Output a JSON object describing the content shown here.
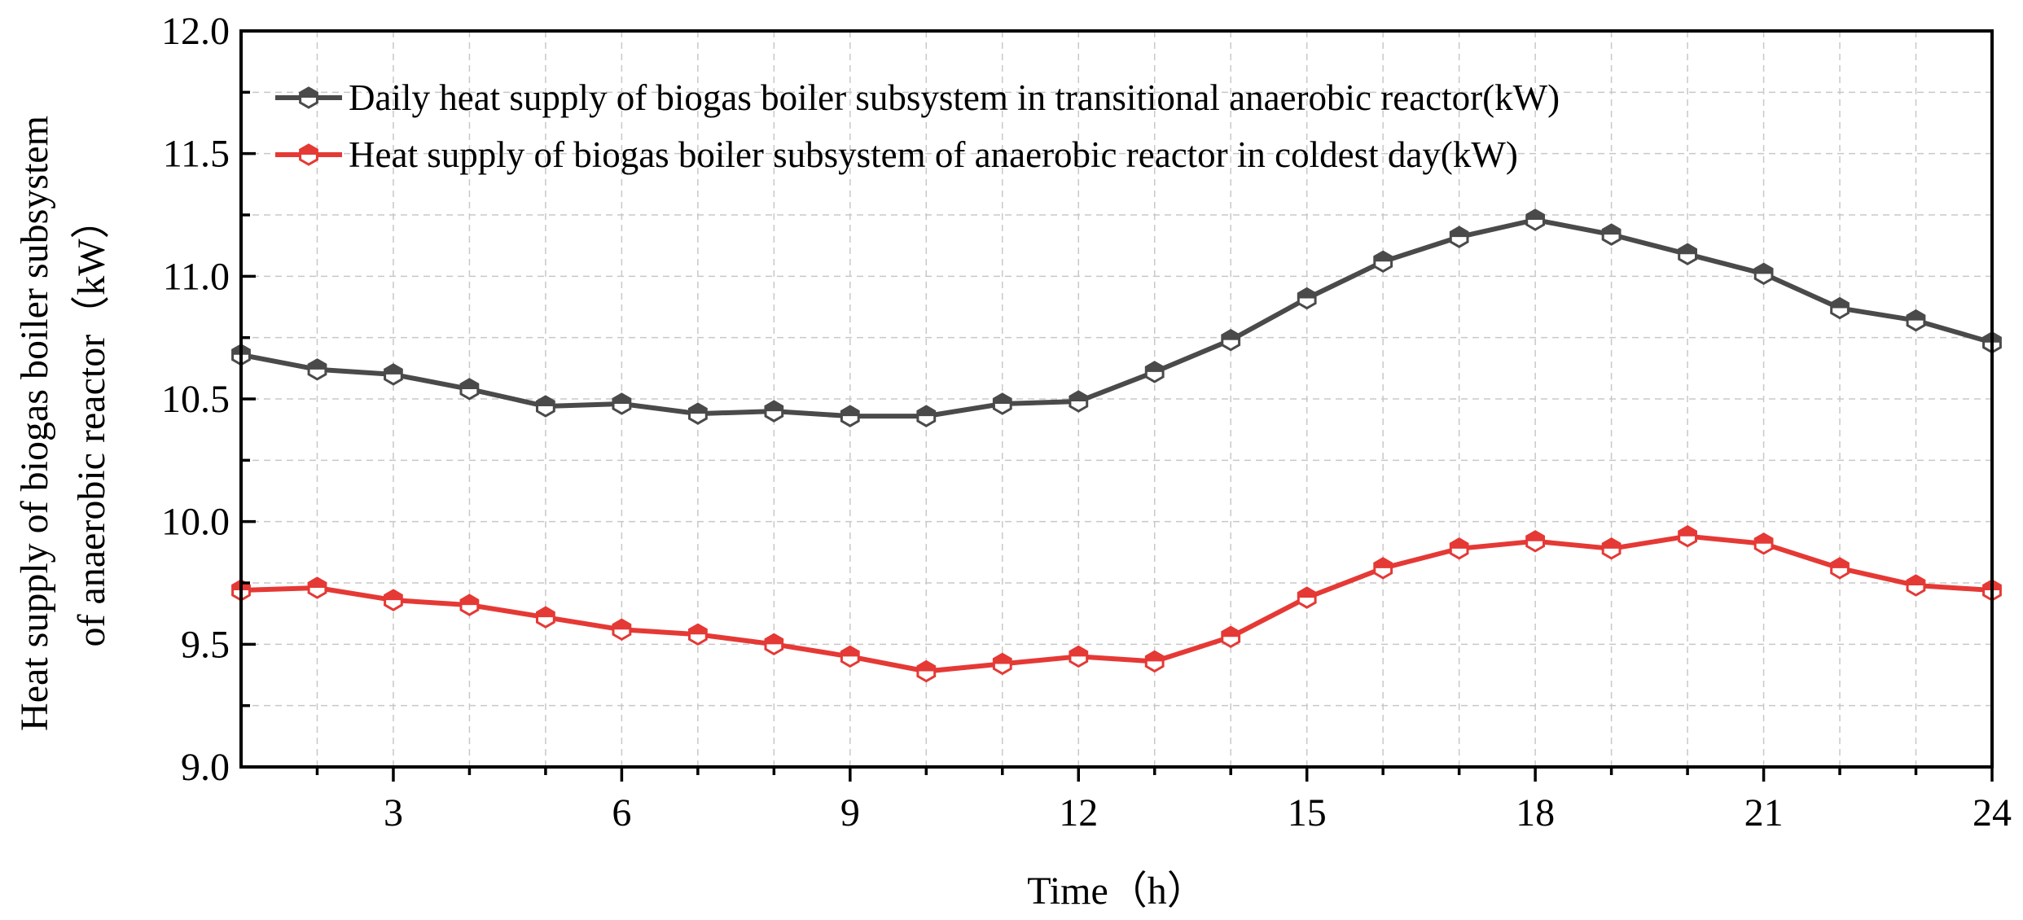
{
  "chart_data": {
    "type": "line",
    "xlabel": "Time（h）",
    "ylabel_lines": [
      "Heat supply of biogas boiler subsystem",
      "of anaerobic reactor（kW）"
    ],
    "xlim": [
      1,
      24
    ],
    "ylim": [
      9.0,
      12.0
    ],
    "x_ticks": [
      3,
      6,
      9,
      12,
      15,
      18,
      21,
      24
    ],
    "y_ticks": [
      9.0,
      9.5,
      10.0,
      10.5,
      11.0,
      11.5,
      12.0
    ],
    "y_tick_labels": [
      "9.0",
      "9.5",
      "10.0",
      "10.5",
      "11.0",
      "11.5",
      "12.0"
    ],
    "grid": true,
    "legend_position": "top-left",
    "x": [
      1,
      2,
      3,
      4,
      5,
      6,
      7,
      8,
      9,
      10,
      11,
      12,
      13,
      14,
      15,
      16,
      17,
      18,
      19,
      20,
      21,
      22,
      23,
      24
    ],
    "series": [
      {
        "name": "Daily heat supply of biogas boiler subsystem in transitional anaerobic reactor(kW)",
        "color": "#4a4a4a",
        "marker": "hexagon",
        "values": [
          10.68,
          10.62,
          10.6,
          10.54,
          10.47,
          10.48,
          10.44,
          10.45,
          10.43,
          10.43,
          10.48,
          10.49,
          10.61,
          10.74,
          10.91,
          11.06,
          11.16,
          11.23,
          11.17,
          11.09,
          11.01,
          10.87,
          10.82,
          10.73
        ]
      },
      {
        "name": "Heat supply of biogas boiler subsystem of anaerobic reactor in coldest day(kW)",
        "color": "#e53935",
        "marker": "hexagon",
        "values": [
          9.72,
          9.73,
          9.68,
          9.66,
          9.61,
          9.56,
          9.54,
          9.5,
          9.45,
          9.39,
          9.42,
          9.45,
          9.43,
          9.53,
          9.69,
          9.81,
          9.89,
          9.92,
          9.89,
          9.94,
          9.91,
          9.81,
          9.74,
          9.72
        ]
      }
    ]
  }
}
